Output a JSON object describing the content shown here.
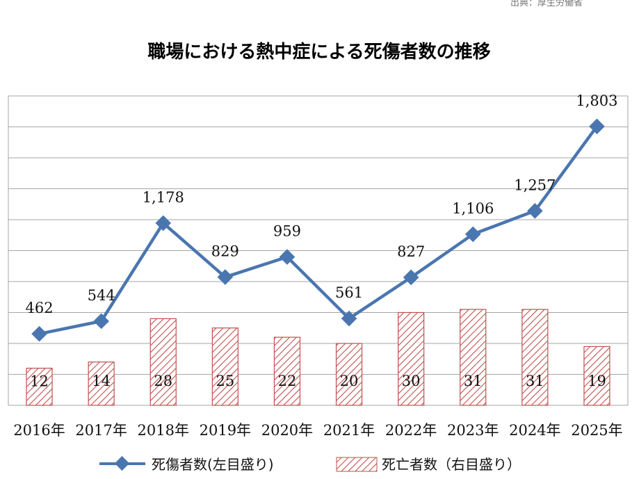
{
  "corner_note": "出典：厚生労働省",
  "chart_data": {
    "type": "bar",
    "title": "職場における熱中症による死傷者数の推移",
    "categories": [
      "2016年",
      "2017年",
      "2018年",
      "2019年",
      "2020年",
      "2021年",
      "2022年",
      "2023年",
      "2024年",
      "2025年"
    ],
    "series": [
      {
        "name": "死傷者数(左目盛り)",
        "kind": "line",
        "axis": "left",
        "color": "#4a76b0",
        "values": [
          462,
          544,
          1178,
          829,
          959,
          561,
          827,
          1106,
          1257,
          1803
        ],
        "labels": [
          "462",
          "544",
          "1,178",
          "829",
          "959",
          "561",
          "827",
          "1,106",
          "1,257",
          "1,803"
        ]
      },
      {
        "name": "死亡者数（右目盛り）",
        "kind": "bar",
        "axis": "right",
        "color": "#c0504d",
        "values": [
          12,
          14,
          28,
          25,
          22,
          20,
          30,
          31,
          31,
          19
        ],
        "labels": [
          "12",
          "14",
          "28",
          "25",
          "22",
          "20",
          "30",
          "31",
          "31",
          "19"
        ]
      }
    ],
    "ylim_left": [
      0,
      2000
    ],
    "ylim_right": [
      0,
      100
    ],
    "grid": true,
    "legend_position": "bottom"
  }
}
